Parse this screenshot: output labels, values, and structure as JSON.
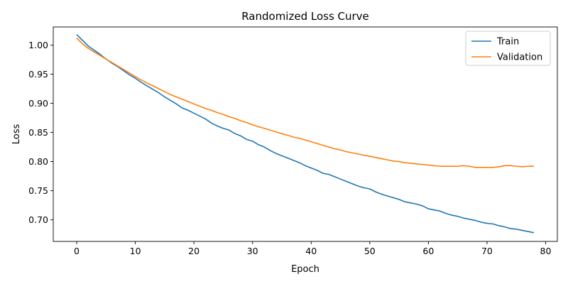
{
  "chart_data": {
    "type": "line",
    "title": "Randomized Loss Curve",
    "xlabel": "Epoch",
    "ylabel": "Loss",
    "xlim": [
      -4,
      82
    ],
    "ylim": [
      0.663,
      1.031
    ],
    "xticks": [
      0,
      10,
      20,
      30,
      40,
      50,
      60,
      70,
      80
    ],
    "yticks": [
      0.7,
      0.75,
      0.8,
      0.85,
      0.9,
      0.95,
      1.0
    ],
    "ytick_labels": [
      "0.70",
      "0.75",
      "0.80",
      "0.85",
      "0.90",
      "0.95",
      "1.00"
    ],
    "grid": false,
    "legend_position": "top-right",
    "series": [
      {
        "name": "Train",
        "color": "#1f77b4",
        "x": [
          0,
          1,
          2,
          3,
          4,
          5,
          6,
          7,
          8,
          9,
          10,
          11,
          12,
          13,
          14,
          15,
          16,
          17,
          18,
          19,
          20,
          21,
          22,
          23,
          24,
          25,
          26,
          27,
          28,
          29,
          30,
          31,
          32,
          33,
          34,
          35,
          36,
          37,
          38,
          39,
          40,
          41,
          42,
          43,
          44,
          45,
          46,
          47,
          48,
          49,
          50,
          51,
          52,
          53,
          54,
          55,
          56,
          57,
          58,
          59,
          60,
          61,
          62,
          63,
          64,
          65,
          66,
          67,
          68,
          69,
          70,
          71,
          72,
          73,
          74,
          75,
          76,
          77,
          78
        ],
        "values": [
          1.018,
          1.008,
          0.998,
          0.991,
          0.984,
          0.976,
          0.969,
          0.963,
          0.956,
          0.949,
          0.943,
          0.936,
          0.93,
          0.924,
          0.918,
          0.911,
          0.905,
          0.899,
          0.892,
          0.888,
          0.883,
          0.878,
          0.873,
          0.866,
          0.861,
          0.857,
          0.854,
          0.848,
          0.844,
          0.838,
          0.835,
          0.829,
          0.825,
          0.819,
          0.814,
          0.81,
          0.806,
          0.802,
          0.798,
          0.793,
          0.789,
          0.785,
          0.78,
          0.778,
          0.774,
          0.77,
          0.766,
          0.762,
          0.758,
          0.755,
          0.753,
          0.748,
          0.744,
          0.741,
          0.738,
          0.735,
          0.731,
          0.729,
          0.727,
          0.724,
          0.719,
          0.717,
          0.715,
          0.711,
          0.708,
          0.706,
          0.703,
          0.701,
          0.699,
          0.696,
          0.694,
          0.693,
          0.69,
          0.688,
          0.685,
          0.684,
          0.682,
          0.68,
          0.678
        ]
      },
      {
        "name": "Validation",
        "color": "#ff7f0e",
        "x": [
          0,
          1,
          2,
          3,
          4,
          5,
          6,
          7,
          8,
          9,
          10,
          11,
          12,
          13,
          14,
          15,
          16,
          17,
          18,
          19,
          20,
          21,
          22,
          23,
          24,
          25,
          26,
          27,
          28,
          29,
          30,
          31,
          32,
          33,
          34,
          35,
          36,
          37,
          38,
          39,
          40,
          41,
          42,
          43,
          44,
          45,
          46,
          47,
          48,
          49,
          50,
          51,
          52,
          53,
          54,
          55,
          56,
          57,
          58,
          59,
          60,
          61,
          62,
          63,
          64,
          65,
          66,
          67,
          68,
          69,
          70,
          71,
          72,
          73,
          74,
          75,
          76,
          77,
          78
        ],
        "values": [
          1.012,
          1.002,
          0.994,
          0.988,
          0.982,
          0.976,
          0.97,
          0.964,
          0.958,
          0.952,
          0.946,
          0.94,
          0.935,
          0.93,
          0.925,
          0.92,
          0.915,
          0.911,
          0.907,
          0.903,
          0.899,
          0.895,
          0.891,
          0.888,
          0.884,
          0.881,
          0.877,
          0.874,
          0.87,
          0.867,
          0.863,
          0.86,
          0.857,
          0.854,
          0.851,
          0.848,
          0.845,
          0.842,
          0.84,
          0.837,
          0.834,
          0.831,
          0.828,
          0.825,
          0.822,
          0.82,
          0.817,
          0.815,
          0.813,
          0.811,
          0.809,
          0.807,
          0.805,
          0.803,
          0.801,
          0.8,
          0.798,
          0.797,
          0.796,
          0.795,
          0.794,
          0.793,
          0.792,
          0.792,
          0.792,
          0.792,
          0.793,
          0.792,
          0.79,
          0.79,
          0.79,
          0.79,
          0.791,
          0.793,
          0.793,
          0.792,
          0.791,
          0.792,
          0.792
        ]
      }
    ]
  }
}
